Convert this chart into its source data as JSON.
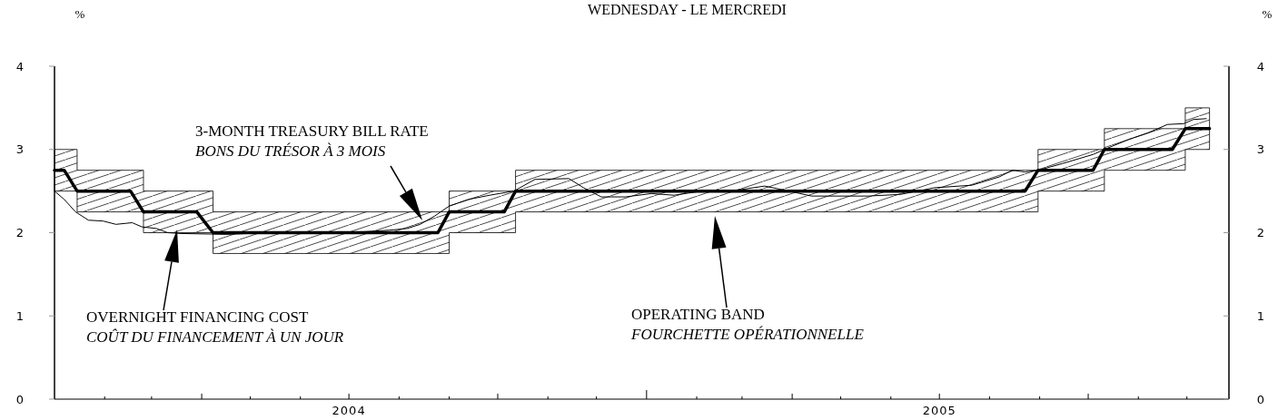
{
  "chart_data": {
    "type": "line",
    "title": "WEDNESDAY - LE MERCREDI",
    "ylabel": "%",
    "y2label": "%",
    "xlim": [
      "2004-01-01",
      "2005-12-27"
    ],
    "xticks": [
      {
        "value": "2004-02-01",
        "label": null
      },
      {
        "value": "2004-03-01",
        "label": null
      },
      {
        "value": "2004-04-01",
        "label": null
      },
      {
        "value": "2004-05-01",
        "label": null
      },
      {
        "value": "2004-06-01",
        "label": null
      },
      {
        "value": "2004-07-01",
        "label": "2004"
      },
      {
        "value": "2004-08-01",
        "label": null
      },
      {
        "value": "2004-09-01",
        "label": null
      },
      {
        "value": "2004-10-01",
        "label": null
      },
      {
        "value": "2004-11-01",
        "label": null
      },
      {
        "value": "2004-12-01",
        "label": null
      },
      {
        "value": "2005-01-01",
        "label": null
      },
      {
        "value": "2005-02-01",
        "label": null
      },
      {
        "value": "2005-03-01",
        "label": null
      },
      {
        "value": "2005-04-01",
        "label": null
      },
      {
        "value": "2005-05-01",
        "label": null
      },
      {
        "value": "2005-06-01",
        "label": null
      },
      {
        "value": "2005-07-01",
        "label": "2005"
      },
      {
        "value": "2005-08-01",
        "label": null
      },
      {
        "value": "2005-09-01",
        "label": null
      },
      {
        "value": "2005-10-01",
        "label": null
      },
      {
        "value": "2005-11-01",
        "label": null
      },
      {
        "value": "2005-12-01",
        "label": null
      }
    ],
    "ylim": [
      0,
      4
    ],
    "yticks": [
      0,
      1,
      2,
      3,
      4
    ],
    "y2lim": [
      0,
      4
    ],
    "y2ticks": [
      0,
      1,
      2,
      3,
      4
    ],
    "series": [
      {
        "color": "#000000",
        "x": [
          "2004-01-01",
          "2004-01-07",
          "2004-01-15",
          "2004-02-17",
          "2004-02-25",
          "2004-03-29",
          "2004-04-08",
          "2004-08-25",
          "2004-09-01",
          "2004-10-05",
          "2004-10-12",
          "2005-08-23",
          "2005-08-31",
          "2005-10-04",
          "2005-10-11",
          "2005-11-22",
          "2005-11-30",
          "2005-12-15"
        ],
        "values": [
          2.75,
          2.75,
          2.5,
          2.5,
          2.25,
          2.25,
          2.0,
          2.0,
          2.25,
          2.25,
          2.5,
          2.5,
          2.75,
          2.75,
          3.0,
          3.0,
          3.25,
          3.25
        ],
        "lower": [
          2.5,
          2.5,
          2.25,
          2.25,
          2.0,
          2.0,
          1.75,
          1.75,
          2.0,
          2.0,
          2.25,
          2.25,
          2.5,
          2.5,
          2.75,
          2.75,
          3.0,
          3.0
        ],
        "upper": [
          3.0,
          3.0,
          2.75,
          2.75,
          2.5,
          2.5,
          2.25,
          2.25,
          2.5,
          2.5,
          2.75,
          2.75,
          3.0,
          3.0,
          3.25,
          3.25,
          3.5,
          3.5
        ]
      },
      {
        "color": "#000000",
        "x": [
          "2004-01-01",
          "2004-01-07",
          "2004-01-14",
          "2004-01-22",
          "2004-01-31",
          "2004-02-08",
          "2004-02-18",
          "2004-02-24",
          "2004-03-04",
          "2004-03-11",
          "2004-03-19",
          "2004-04-16",
          "2004-05-14",
          "2004-06-11",
          "2004-07-09",
          "2004-07-26",
          "2004-08-06",
          "2004-08-14",
          "2004-08-23",
          "2004-09-01",
          "2004-09-13",
          "2004-09-26",
          "2004-10-11",
          "2004-10-24",
          "2004-11-14",
          "2004-11-23",
          "2004-12-04",
          "2004-12-19",
          "2005-01-04",
          "2005-01-18",
          "2005-02-01",
          "2005-02-19",
          "2005-03-01",
          "2005-03-15",
          "2005-03-30",
          "2005-04-13",
          "2005-05-18",
          "2005-06-07",
          "2005-06-28",
          "2005-07-21",
          "2005-08-07",
          "2005-08-15",
          "2005-08-23",
          "2005-08-31",
          "2005-09-15",
          "2005-10-04",
          "2005-10-11",
          "2005-10-26",
          "2005-11-07",
          "2005-11-19",
          "2005-11-29",
          "2005-12-05",
          "2005-12-13"
        ],
        "values": [
          2.5,
          2.4,
          2.25,
          2.15,
          2.14,
          2.1,
          2.12,
          2.07,
          2.05,
          2.0,
          1.99,
          1.98,
          2.0,
          1.99,
          2.01,
          2.03,
          2.05,
          2.1,
          2.2,
          2.32,
          2.4,
          2.45,
          2.5,
          2.64,
          2.65,
          2.54,
          2.43,
          2.43,
          2.47,
          2.45,
          2.49,
          2.5,
          2.52,
          2.56,
          2.5,
          2.44,
          2.44,
          2.46,
          2.54,
          2.57,
          2.67,
          2.75,
          2.73,
          2.75,
          2.83,
          2.94,
          3.0,
          3.12,
          3.2,
          3.3,
          3.31,
          3.36,
          3.37
        ]
      }
    ],
    "annotations": [
      "3-MONTH TREASURY BILL RATE\nBONS DU TRÉSOR À 3 MOIS",
      "OVERNIGHT FINANCING COST\nCOÛT DU FINANCEMENT À UN JOUR",
      "OPERATING BAND\nFOURCHETTE OPÉRATIONNELLE"
    ]
  }
}
